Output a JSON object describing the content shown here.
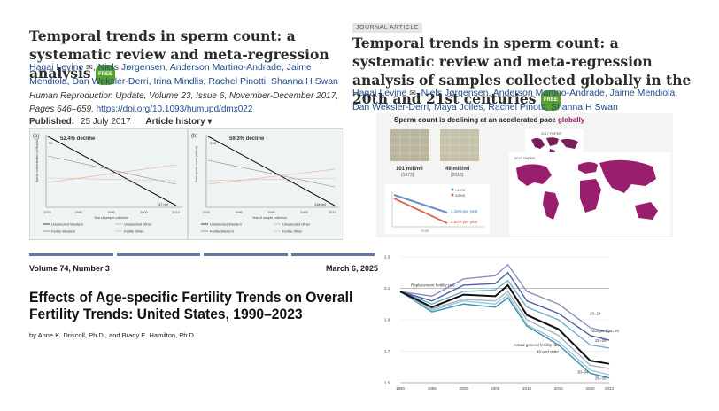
{
  "left_article": {
    "title": "Temporal trends in sperm count: a systematic review and meta-regression analysis",
    "free_badge": "FREE",
    "authors": [
      "Hagai Levine",
      "Niels Jørgensen",
      "Anderson Martino-Andrade",
      "Jaime Mendiola",
      "Dan Weksler-Derri",
      "Irina Mindlis",
      "Rachel Pinotti",
      "Shanna H Swan"
    ],
    "citation": "Human Reproduction Update, Volume 23, Issue 6, November-December 2017, Pages 646–659,",
    "doi": "https://doi.org/10.1093/humupd/dmx022",
    "published_label": "Published:",
    "published_date": "25 July 2017",
    "history_label": "Article history ▾",
    "figure": {
      "panel_a": {
        "tag": "(a)",
        "decline": "52.4% decline",
        "start_value": "99",
        "end_value": "47 mil",
        "ylabel": "Sperm concentration (million/ml)",
        "xlabel": "Year of sample collection",
        "xticks": [
          "1970",
          "1980",
          "1990",
          "2000",
          "2010"
        ],
        "legend": [
          "Unselected Western",
          "Unselected Other",
          "Fertile Western",
          "Fertile Other"
        ]
      },
      "panel_b": {
        "tag": "(b)",
        "decline": "59.3% decline",
        "start_value": "338",
        "end_value": "138 mil",
        "ylabel": "Total sperm count (million)",
        "xlabel": "Year of sample collection",
        "xticks": [
          "1970",
          "1980",
          "1990",
          "2000",
          "2010"
        ],
        "legend": [
          "Unselected Western",
          "Unselected Other",
          "Fertile Western",
          "Fertile Other"
        ]
      }
    }
  },
  "right_article": {
    "badge": "JOURNAL ARTICLE",
    "title": "Temporal trends in sperm count: a systematic review and meta-regression analysis of samples collected globally in the 20th and 21st centuries",
    "free_badge": "FREE",
    "authors": [
      "Hagai Levine",
      "Niels Jørgensen",
      "Anderson Martino-Andrade",
      "Jaime Mendiola",
      "Dan Weksler-Derri",
      "Maya Jolles",
      "Rachel Pinotti",
      "Shanna H Swan"
    ],
    "infographic": {
      "headline": "Sperm count is declining at an accelerated pace",
      "headline_accent": "globally",
      "count_1973": "101 mill/ml",
      "year_1973": "(1973)",
      "count_2018": "49 mill/ml",
      "year_2018": "(2018)",
      "legend": [
        "<1972",
        "≥2000"
      ],
      "rate_1": "1.16% per year",
      "rate_2": "2.64% per year",
      "axis_label": "YEAR",
      "map_label_2017": "2017 PAPER",
      "map_label_2022": "2022 PAPER"
    }
  },
  "cdc_report": {
    "volume": "Volume 74, Number 3",
    "date": "March 6, 2025",
    "title": "Effects of Age-specific Fertility Trends on Overall Fertility Trends: United States, 1990–2023",
    "authors": "by Anne K. Driscoll, Ph.D., and Brady E. Hamilton, Ph.D."
  },
  "fertility_chart": {
    "yticks": [
      "2.3",
      "2.1",
      "1.9",
      "1.7",
      "1.5"
    ],
    "xticks": [
      "1990",
      "1995",
      "2000",
      "2005",
      "2010",
      "2015",
      "2020",
      "2023"
    ],
    "labels": {
      "replacement": "Replacement fertility rate",
      "actual": "Actual general fertility rate",
      "forty_older": "40 and older",
      "twenty_24": "20–24",
      "younger": "Younger than 20",
      "twenty5_29": "25–29",
      "thirty_34": "30–34",
      "thirty5_39": "35–39"
    }
  },
  "chart_data": {
    "type": "line",
    "x": [
      1990,
      1995,
      2000,
      2005,
      2007,
      2010,
      2015,
      2020,
      2023
    ],
    "ylim": [
      1.5,
      2.3
    ],
    "series": [
      {
        "name": "Actual general fertility rate",
        "values": [
          2.08,
          1.98,
          2.06,
          2.05,
          2.12,
          1.93,
          1.84,
          1.64,
          1.62
        ]
      },
      {
        "name": "20–24",
        "values": [
          2.08,
          2.05,
          2.16,
          2.18,
          2.25,
          2.08,
          2.0,
          1.85,
          1.82
        ]
      },
      {
        "name": "Younger than 20",
        "values": [
          2.08,
          2.02,
          2.12,
          2.13,
          2.2,
          2.02,
          1.94,
          1.8,
          1.77
        ]
      },
      {
        "name": "25–29",
        "values": [
          2.08,
          2.0,
          2.08,
          2.09,
          2.15,
          1.98,
          1.9,
          1.74,
          1.72
        ]
      },
      {
        "name": "30–34",
        "values": [
          2.08,
          1.96,
          2.02,
          2.0,
          2.06,
          1.87,
          1.76,
          1.58,
          1.55
        ]
      },
      {
        "name": "35–39",
        "values": [
          2.08,
          1.95,
          2.0,
          1.98,
          2.04,
          1.86,
          1.74,
          1.56,
          1.53
        ]
      },
      {
        "name": "40 and older",
        "values": [
          2.08,
          1.97,
          2.03,
          2.02,
          2.08,
          1.9,
          1.8,
          1.61,
          1.59
        ]
      },
      {
        "name": "Replacement fertility rate",
        "values": [
          2.1,
          2.1,
          2.1,
          2.1,
          2.1,
          2.1,
          2.1,
          2.1,
          2.1
        ]
      }
    ],
    "colors": [
      "#111111",
      "#8a8fc4",
      "#4e5ea8",
      "#6fb0c9",
      "#9ec7d6",
      "#3e8fb0",
      "#a7b3c4",
      "#888888"
    ]
  }
}
